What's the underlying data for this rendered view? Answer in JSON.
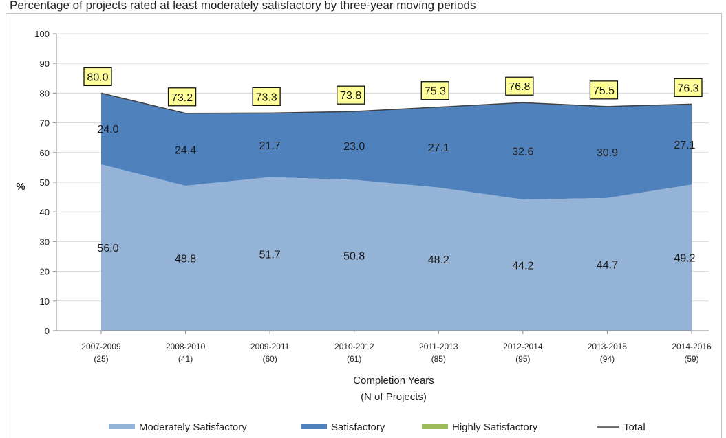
{
  "caption": "Percentage of projects rated at least moderately satisfactory by three-year moving periods",
  "chart_data": {
    "type": "area",
    "stacked": true,
    "ylabel": "%",
    "xlabel_line1": "Completion Years",
    "xlabel_line2": "(N of Projects)",
    "ylim": [
      0,
      100
    ],
    "yticks": [
      0,
      10,
      20,
      30,
      40,
      50,
      60,
      70,
      80,
      90,
      100
    ],
    "grid": true,
    "legend_position": "bottom",
    "categories": [
      {
        "period": "2007-2009",
        "n": "(25)"
      },
      {
        "period": "2008-2010",
        "n": "(41)"
      },
      {
        "period": "2009-2011",
        "n": "(60)"
      },
      {
        "period": "2010-2012",
        "n": "(61)"
      },
      {
        "period": "2011-2013",
        "n": "(85)"
      },
      {
        "period": "2012-2014",
        "n": "(95)"
      },
      {
        "period": "2013-2015",
        "n": "(94)"
      },
      {
        "period": "2014-2016",
        "n": "(59)"
      }
    ],
    "series": [
      {
        "name": "Moderately Satisfactory",
        "color": "#95b3d7",
        "values": [
          56.0,
          48.8,
          51.7,
          50.8,
          48.2,
          44.2,
          44.7,
          49.2
        ],
        "labels": [
          "56.0",
          "48.8",
          "51.7",
          "50.8",
          "48.2",
          "44.2",
          "44.7",
          "49.2"
        ]
      },
      {
        "name": "Satisfactory",
        "color": "#4f81bd",
        "values": [
          24.0,
          24.4,
          21.7,
          23.0,
          27.1,
          32.6,
          30.9,
          27.1
        ],
        "labels": [
          "24.0",
          "24.4",
          "21.7",
          "23.0",
          "27.1",
          "32.6",
          "30.9",
          "27.1"
        ]
      },
      {
        "name": "Highly Satisfactory",
        "color": "#9bbb59",
        "values": [
          0,
          0,
          0,
          0,
          0,
          0,
          0,
          0
        ]
      }
    ],
    "total": {
      "name": "Total",
      "color": "#404040",
      "values": [
        80.0,
        73.2,
        73.3,
        73.8,
        75.3,
        76.8,
        75.5,
        76.3
      ],
      "labels": [
        "80.0",
        "73.2",
        "73.3",
        "73.8",
        "75.3",
        "76.8",
        "75.5",
        "76.3"
      ],
      "label_bg": "#ffff99"
    }
  }
}
